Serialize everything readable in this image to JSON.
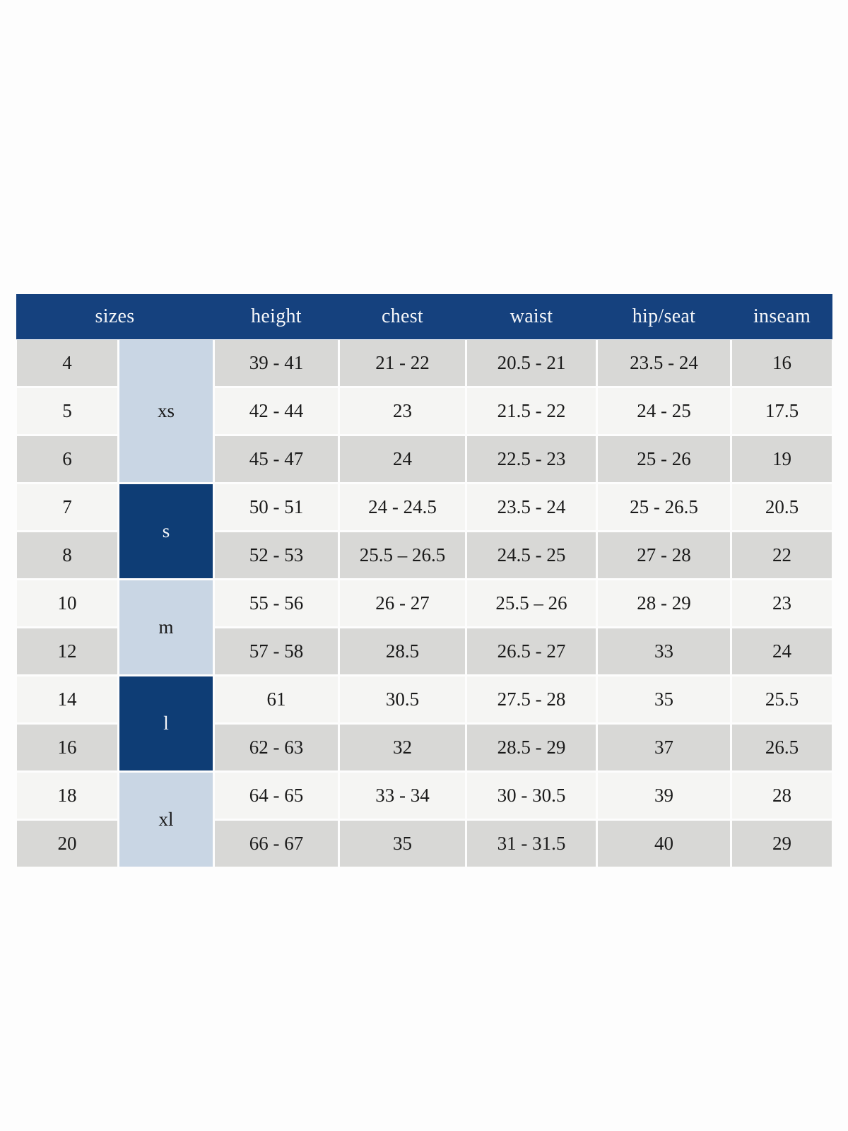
{
  "chart_data": {
    "type": "table",
    "columns": [
      "sizes",
      "height",
      "chest",
      "waist",
      "hip/seat",
      "inseam"
    ],
    "column_keys": [
      "height",
      "chest",
      "waist",
      "hip_seat",
      "inseam"
    ],
    "size_groups": [
      {
        "label": "xs",
        "sizes": [
          "4",
          "5",
          "6"
        ],
        "shade": "light"
      },
      {
        "label": "s",
        "sizes": [
          "7",
          "8"
        ],
        "shade": "dark"
      },
      {
        "label": "m",
        "sizes": [
          "10",
          "12"
        ],
        "shade": "light"
      },
      {
        "label": "l",
        "sizes": [
          "14",
          "16"
        ],
        "shade": "dark"
      },
      {
        "label": "xl",
        "sizes": [
          "18",
          "20"
        ],
        "shade": "light"
      }
    ],
    "rows": [
      {
        "size": "4",
        "group": "xs",
        "height": "39 - 41",
        "chest": "21 - 22",
        "waist": "20.5 - 21",
        "hip_seat": "23.5 - 24",
        "inseam": "16"
      },
      {
        "size": "5",
        "group": "xs",
        "height": "42 - 44",
        "chest": "23",
        "waist": "21.5 - 22",
        "hip_seat": "24 - 25",
        "inseam": "17.5"
      },
      {
        "size": "6",
        "group": "xs",
        "height": "45 - 47",
        "chest": "24",
        "waist": "22.5 - 23",
        "hip_seat": "25 - 26",
        "inseam": "19"
      },
      {
        "size": "7",
        "group": "s",
        "height": "50 - 51",
        "chest": "24 - 24.5",
        "waist": "23.5 - 24",
        "hip_seat": "25 - 26.5",
        "inseam": "20.5"
      },
      {
        "size": "8",
        "group": "s",
        "height": "52 - 53",
        "chest": "25.5 – 26.5",
        "waist": "24.5 - 25",
        "hip_seat": "27 - 28",
        "inseam": "22"
      },
      {
        "size": "10",
        "group": "m",
        "height": "55 - 56",
        "chest": "26 - 27",
        "waist": "25.5 – 26",
        "hip_seat": "28 - 29",
        "inseam": "23"
      },
      {
        "size": "12",
        "group": "m",
        "height": "57 - 58",
        "chest": "28.5",
        "waist": "26.5 - 27",
        "hip_seat": "33",
        "inseam": "24"
      },
      {
        "size": "14",
        "group": "l",
        "height": "61",
        "chest": "30.5",
        "waist": "27.5 - 28",
        "hip_seat": "35",
        "inseam": "25.5"
      },
      {
        "size": "16",
        "group": "l",
        "height": "62 - 63",
        "chest": "32",
        "waist": "28.5 - 29",
        "hip_seat": "37",
        "inseam": "26.5"
      },
      {
        "size": "18",
        "group": "xl",
        "height": "64 - 65",
        "chest": "33 - 34",
        "waist": "30 - 30.5",
        "hip_seat": "39",
        "inseam": "28"
      },
      {
        "size": "20",
        "group": "xl",
        "height": "66 - 67",
        "chest": "35",
        "waist": "31 - 31.5",
        "hip_seat": "40",
        "inseam": "29"
      }
    ],
    "layout_hints": {
      "header_position": "top",
      "grouped_column": "sizes",
      "row_striping": "alternating gray/white starting gray"
    }
  },
  "colors": {
    "header_bg": "#15417E",
    "header_text": "#F4F6F9",
    "group_dark_bg": "#0E3D75",
    "group_dark_text": "#F4F6F9",
    "group_light_bg": "#C9D6E4",
    "row_gray": "#D8D8D6",
    "row_light": "#F5F5F3",
    "cell_text": "#1A1A1A",
    "page_bg": "#FDFDFD"
  }
}
